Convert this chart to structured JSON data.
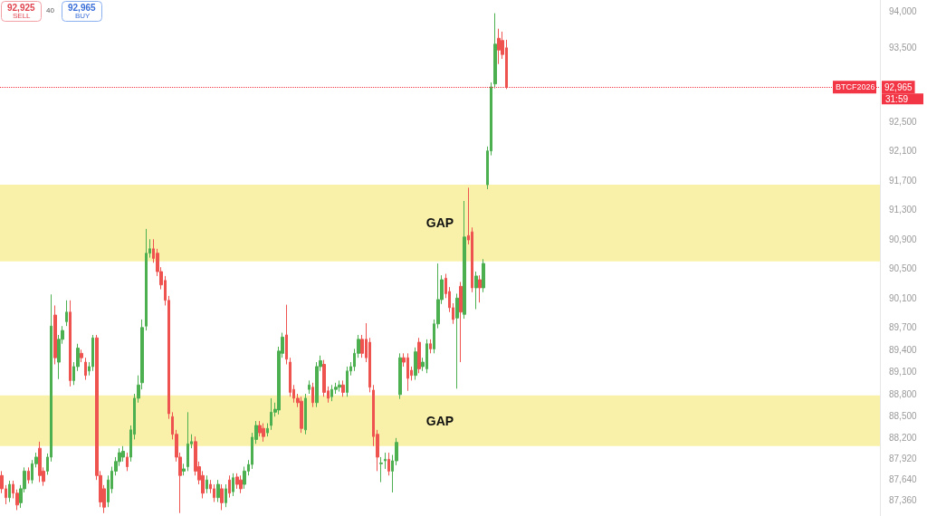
{
  "chart_data": {
    "type": "candlestick",
    "categories": [
      null,
      null,
      null,
      null,
      null,
      null,
      null,
      null,
      null,
      null,
      null,
      null,
      null,
      null,
      null,
      null,
      null,
      null,
      null,
      null,
      null,
      null,
      null,
      null,
      null,
      null,
      null,
      null,
      null,
      null,
      null,
      null,
      null,
      null,
      null,
      null,
      null,
      null,
      null,
      null,
      null,
      null,
      null,
      null,
      null,
      null,
      null,
      null,
      null,
      null,
      null,
      null,
      null,
      null,
      null,
      null,
      null,
      null,
      null,
      null,
      null,
      null,
      null,
      null,
      null,
      null,
      null,
      null,
      null,
      null,
      null,
      null,
      null,
      null,
      null,
      null,
      null,
      null,
      null,
      null,
      null,
      null,
      null,
      null,
      null,
      null,
      null,
      null,
      null,
      null,
      null,
      null,
      null,
      null,
      null,
      null,
      null,
      null,
      null,
      null,
      null,
      null,
      null,
      null,
      null,
      null,
      null,
      null,
      null,
      null,
      null,
      null,
      null,
      null,
      null,
      null,
      null,
      null,
      null,
      null,
      null,
      null,
      null,
      null,
      null,
      null,
      null,
      null,
      null,
      null,
      null,
      null,
      null,
      null,
      null,
      null,
      null,
      null,
      null,
      null,
      null,
      null,
      null,
      null,
      null,
      null,
      null,
      null,
      null,
      null,
      null,
      null,
      null,
      null,
      null,
      null,
      null,
      null,
      null,
      null,
      null,
      null,
      null,
      null,
      null,
      null,
      null,
      null,
      null,
      null,
      null,
      null,
      null,
      null,
      null,
      null,
      null,
      null,
      null,
      null,
      null,
      null,
      null,
      null,
      null,
      null,
      null,
      null,
      null,
      null,
      null,
      null,
      null,
      null,
      null,
      null,
      null,
      null,
      null,
      null,
      null,
      null,
      null,
      null,
      null,
      null,
      null,
      null,
      null,
      null,
      null,
      null,
      null,
      null,
      null,
      null,
      null,
      null,
      null,
      null,
      null,
      null,
      null,
      null,
      null,
      null,
      null,
      null,
      null,
      null,
      null,
      null
    ],
    "ohlc": [
      [
        87690,
        87750,
        87450,
        87510
      ],
      [
        87510,
        87560,
        87300,
        87390
      ],
      [
        87390,
        87620,
        87330,
        87570
      ],
      [
        87570,
        87620,
        87380,
        87450
      ],
      [
        87450,
        87500,
        87220,
        87290
      ],
      [
        87320,
        87560,
        87250,
        87510
      ],
      [
        87510,
        87800,
        87460,
        87750
      ],
      [
        87750,
        87800,
        87580,
        87630
      ],
      [
        87630,
        87900,
        87580,
        87850
      ],
      [
        87850,
        88000,
        87800,
        87940
      ],
      [
        88060,
        88150,
        87600,
        87690
      ],
      [
        87750,
        87800,
        87550,
        87610
      ],
      [
        87750,
        87990,
        87700,
        87940
      ],
      [
        87940,
        90150,
        87880,
        89720
      ],
      [
        89870,
        90000,
        89200,
        89290
      ],
      [
        89230,
        89600,
        89000,
        89540
      ],
      [
        89540,
        89720,
        89480,
        89660
      ],
      [
        89780,
        90070,
        89720,
        89910
      ],
      [
        89910,
        90070,
        88900,
        88980
      ],
      [
        88980,
        89230,
        88920,
        89170
      ],
      [
        89170,
        89480,
        89110,
        89420
      ],
      [
        89350,
        89400,
        89230,
        89290
      ],
      [
        89230,
        89290,
        88990,
        89050
      ],
      [
        89110,
        89230,
        89050,
        89170
      ],
      [
        89170,
        89600,
        89110,
        89560
      ],
      [
        89560,
        89600,
        87630,
        87690
      ],
      [
        87690,
        87750,
        87260,
        87330
      ],
      [
        87510,
        87560,
        87180,
        87260
      ],
      [
        87330,
        87690,
        87260,
        87630
      ],
      [
        87510,
        87810,
        87450,
        87750
      ],
      [
        87750,
        87940,
        87690,
        87880
      ],
      [
        87880,
        88060,
        87820,
        88000
      ],
      [
        87940,
        88090,
        87880,
        88020
      ],
      [
        87940,
        88000,
        87750,
        87810
      ],
      [
        87940,
        88370,
        87880,
        88310
      ],
      [
        88250,
        88800,
        88180,
        88740
      ],
      [
        88740,
        89050,
        88680,
        88920
      ],
      [
        88950,
        89810,
        88860,
        89700
      ],
      [
        89720,
        91040,
        89660,
        90710
      ],
      [
        90710,
        90900,
        90650,
        90770
      ],
      [
        90770,
        90900,
        90580,
        90640
      ],
      [
        90710,
        90770,
        90400,
        90460
      ],
      [
        90460,
        90520,
        90220,
        90280
      ],
      [
        90340,
        90400,
        90000,
        90070
      ],
      [
        90070,
        90130,
        88460,
        88530
      ],
      [
        88490,
        88550,
        88180,
        88250
      ],
      [
        88250,
        88310,
        87880,
        87940
      ],
      [
        87940,
        88000,
        87180,
        87690
      ],
      [
        87750,
        87850,
        87690,
        87780
      ],
      [
        87810,
        88550,
        87750,
        88120
      ],
      [
        88120,
        88250,
        88060,
        88150
      ],
      [
        88150,
        88220,
        87690,
        87750
      ],
      [
        87810,
        87880,
        87570,
        87630
      ],
      [
        87690,
        87750,
        87380,
        87450
      ],
      [
        87510,
        87690,
        87450,
        87630
      ],
      [
        87570,
        87630,
        87450,
        87510
      ],
      [
        87510,
        87570,
        87330,
        87390
      ],
      [
        87390,
        87630,
        87330,
        87570
      ],
      [
        87510,
        87570,
        87220,
        87320
      ],
      [
        87320,
        87570,
        87260,
        87510
      ],
      [
        87630,
        87690,
        87390,
        87450
      ],
      [
        87470,
        87720,
        87410,
        87660
      ],
      [
        87670,
        87720,
        87510,
        87570
      ],
      [
        87630,
        87690,
        87450,
        87510
      ],
      [
        87570,
        87810,
        87510,
        87750
      ],
      [
        87750,
        87900,
        87690,
        87840
      ],
      [
        87840,
        88270,
        87780,
        88210
      ],
      [
        88180,
        88430,
        88120,
        88370
      ],
      [
        88370,
        88430,
        88220,
        88270
      ],
      [
        88330,
        88400,
        88150,
        88220
      ],
      [
        88270,
        88400,
        88220,
        88330
      ],
      [
        88370,
        88740,
        88310,
        88550
      ],
      [
        88550,
        88680,
        88490,
        88590
      ],
      [
        88580,
        89440,
        88520,
        89380
      ],
      [
        89350,
        89630,
        89290,
        89570
      ],
      [
        89600,
        90010,
        89200,
        89270
      ],
      [
        89230,
        89290,
        88760,
        88820
      ],
      [
        88860,
        88920,
        88680,
        88740
      ],
      [
        88740,
        88800,
        88620,
        88680
      ],
      [
        88700,
        88760,
        88270,
        88330
      ],
      [
        88310,
        88800,
        88250,
        88740
      ],
      [
        88860,
        88980,
        88800,
        88920
      ],
      [
        88890,
        88950,
        88620,
        88680
      ],
      [
        88680,
        89230,
        88620,
        89170
      ],
      [
        89170,
        89320,
        89110,
        89250
      ],
      [
        89200,
        89260,
        88760,
        88820
      ],
      [
        88840,
        88900,
        88680,
        88740
      ],
      [
        88760,
        88920,
        88700,
        88860
      ],
      [
        88860,
        88950,
        88800,
        88890
      ],
      [
        88890,
        88980,
        88830,
        88920
      ],
      [
        88920,
        88980,
        88760,
        88820
      ],
      [
        88820,
        89170,
        88760,
        89110
      ],
      [
        89110,
        89230,
        89050,
        89170
      ],
      [
        89170,
        89410,
        89110,
        89350
      ],
      [
        89350,
        89600,
        89290,
        89540
      ],
      [
        89540,
        89600,
        89290,
        89350
      ],
      [
        89540,
        89760,
        89230,
        89290
      ],
      [
        89500,
        89560,
        88820,
        88890
      ],
      [
        88850,
        88920,
        88090,
        88220
      ],
      [
        88250,
        88310,
        87750,
        87940
      ],
      [
        87850,
        87940,
        87600,
        87860
      ],
      [
        87890,
        88000,
        87780,
        87910
      ],
      [
        87910,
        88000,
        87690,
        87750
      ],
      [
        87750,
        87970,
        87460,
        87890
      ],
      [
        87890,
        88200,
        87830,
        88140
      ],
      [
        88790,
        89350,
        88730,
        89290
      ],
      [
        89290,
        89350,
        89170,
        89230
      ],
      [
        89290,
        89350,
        88840,
        89010
      ],
      [
        89120,
        89170,
        88980,
        89050
      ],
      [
        89050,
        89430,
        88990,
        89370
      ],
      [
        89500,
        89560,
        89080,
        89140
      ],
      [
        89170,
        89290,
        89110,
        89230
      ],
      [
        89140,
        89540,
        89080,
        89480
      ],
      [
        89480,
        89540,
        89350,
        89410
      ],
      [
        89410,
        89810,
        89350,
        89750
      ],
      [
        89750,
        90570,
        89690,
        90080
      ],
      [
        90080,
        90410,
        90020,
        90350
      ],
      [
        90370,
        90430,
        90100,
        90160
      ],
      [
        90190,
        90250,
        89910,
        89970
      ],
      [
        89970,
        90030,
        89750,
        89810
      ],
      [
        89830,
        90160,
        88870,
        90100
      ],
      [
        90260,
        90320,
        89230,
        89910
      ],
      [
        89880,
        91420,
        89820,
        90930
      ],
      [
        90950,
        91600,
        90830,
        90890
      ],
      [
        91000,
        91060,
        90180,
        90240
      ],
      [
        90240,
        90460,
        89950,
        90400
      ],
      [
        90350,
        90410,
        90040,
        90240
      ],
      [
        90240,
        90630,
        90180,
        90570
      ],
      [
        91640,
        92160,
        91580,
        92100
      ],
      [
        92100,
        93030,
        92040,
        92970
      ],
      [
        93010,
        93970,
        92950,
        93550
      ],
      [
        93630,
        93760,
        93280,
        93470
      ],
      [
        93600,
        93720,
        93350,
        93410
      ],
      [
        93500,
        93610,
        92940,
        92965
      ],
      null,
      null,
      null,
      null,
      null,
      null,
      null,
      null,
      null,
      null,
      null,
      null,
      null,
      null,
      null,
      null,
      null,
      null,
      null,
      null,
      null,
      null,
      null,
      null,
      null,
      null,
      null,
      null,
      null,
      null,
      null,
      null,
      null,
      null,
      null,
      null,
      null,
      null,
      null,
      null,
      null,
      null,
      null,
      null,
      null,
      null,
      null,
      null,
      null,
      null,
      null,
      null,
      null,
      null,
      null,
      null,
      null,
      null,
      null,
      null,
      null,
      null,
      null,
      null,
      null,
      null,
      null,
      null,
      null,
      null,
      null,
      null,
      null,
      null,
      null,
      null,
      null,
      null,
      null,
      null,
      null,
      null,
      null,
      null,
      null,
      null,
      null,
      null,
      null,
      null,
      null,
      null,
      null,
      null,
      null,
      null,
      null,
      null
    ],
    "ylim": [
      87140,
      94150
    ],
    "yticks": [
      {
        "value": 94000,
        "label": "94,000"
      },
      {
        "value": 93500,
        "label": "93,500"
      },
      {
        "value": 92500,
        "label": "92,500"
      },
      {
        "value": 92100,
        "label": "92,100"
      },
      {
        "value": 91700,
        "label": "91,700"
      },
      {
        "value": 91300,
        "label": "91,300"
      },
      {
        "value": 90900,
        "label": "90,900"
      },
      {
        "value": 90500,
        "label": "90,500"
      },
      {
        "value": 90100,
        "label": "90,100"
      },
      {
        "value": 89700,
        "label": "89,700"
      },
      {
        "value": 89400,
        "label": "89,400"
      },
      {
        "value": 89100,
        "label": "89,100"
      },
      {
        "value": 88800,
        "label": "88,800"
      },
      {
        "value": 88500,
        "label": "88,500"
      },
      {
        "value": 88200,
        "label": "88,200"
      },
      {
        "value": 87920,
        "label": "87,920"
      },
      {
        "value": 87640,
        "label": "87,640"
      },
      {
        "value": 87360,
        "label": "87,360"
      }
    ],
    "tick_labels": "y",
    "ref_lines": [
      {
        "axis": "y",
        "value": 92965,
        "label": "92,965",
        "color": "#f23645",
        "line_style": "dotted"
      }
    ],
    "bands": [
      {
        "axis": "y",
        "from": 90600,
        "to": 91640,
        "label": "GAP",
        "color": "#f8f0a0"
      },
      {
        "axis": "y",
        "from": 88090,
        "to": 88780,
        "label": "GAP",
        "color": "#f8f0a0"
      }
    ],
    "annotations": [
      "92,925",
      "SELL",
      "40",
      "92,965",
      "BUY",
      "BTCF2026",
      "31:59"
    ]
  }
}
